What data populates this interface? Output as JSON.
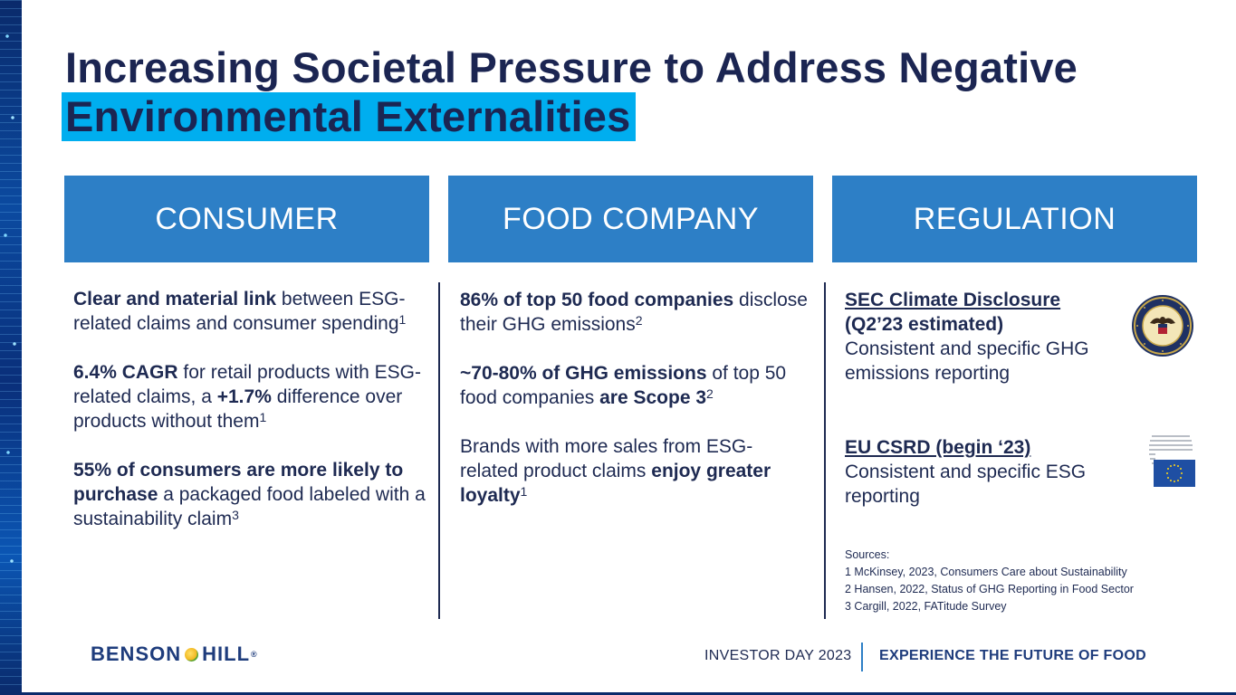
{
  "title": {
    "line1": "Increasing Societal Pressure to Address Negative",
    "line2": "Environmental Externalities"
  },
  "columns": {
    "consumer": {
      "header": "CONSUMER"
    },
    "food": {
      "header": "FOOD COMPANY"
    },
    "regulation": {
      "header": "REGULATION"
    }
  },
  "consumer": {
    "p1_bold": "Clear and material link",
    "p1_text": " between ESG-related claims and consumer spending",
    "p1_sup": "1",
    "p2_bold": "6.4% CAGR",
    "p2_text": " for retail products with ESG-related claims, a ",
    "p2_bold2": "+1.7%",
    "p2_text2": " difference over products without them",
    "p2_sup": "1",
    "p3_bold": "55% of consumers are more likely to purchase",
    "p3_text": " a packaged food labeled with a sustainability claim",
    "p3_sup": "3"
  },
  "food": {
    "p1_bold": "86% of top 50 food companies",
    "p1_text": " disclose their GHG emissions",
    "p1_sup": "2",
    "p2_bold": "~70-80% of GHG emissions",
    "p2_text": " of top 50 food companies ",
    "p2_bold2": "are Scope 3",
    "p2_sup": "2",
    "p3_text": "Brands with more sales from ESG-related product claims ",
    "p3_bold": "enjoy greater loyalty",
    "p3_sup": "1"
  },
  "regulation": {
    "sec_title": "SEC Climate Disclosure",
    "sec_sub": "(Q2’23 estimated)",
    "sec_text": "Consistent and specific GHG emissions reporting",
    "eu_title": "EU CSRD (begin ‘23)",
    "eu_text": "Consistent and specific ESG reporting",
    "sec_seal_icon": "sec-seal-icon",
    "eu_icon": "eu-commission-icon"
  },
  "sources": {
    "label": "Sources:",
    "items": [
      "1 McKinsey, 2023, Consumers Care about Sustainability",
      "2 Hansen, 2022, Status of GHG Reporting in Food Sector",
      "3 Cargill, 2022, FATitude Survey"
    ]
  },
  "footer": {
    "brand_left": "BENSON",
    "brand_right": "HILL",
    "brand_reg": "®",
    "event": "INVESTOR DAY 2023",
    "tagline": "EXPERIENCE THE FUTURE OF FOOD"
  },
  "colors": {
    "navy": "#1e2a52",
    "header_blue": "#2d7fc6",
    "highlight_cyan": "#00aeef"
  }
}
